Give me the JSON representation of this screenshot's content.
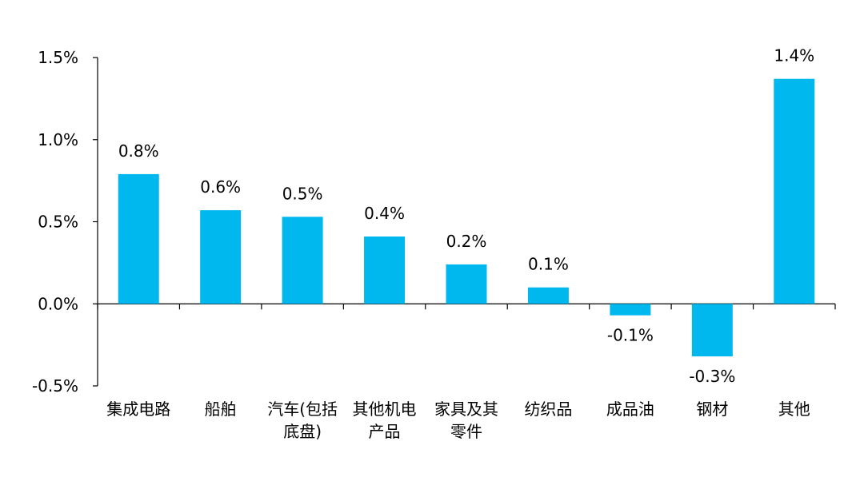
{
  "chart_data": {
    "type": "bar",
    "title": "",
    "xlabel": "",
    "ylabel": "",
    "categories": [
      [
        "集成电路"
      ],
      [
        "船舶"
      ],
      [
        "汽车(包括",
        "底盘)"
      ],
      [
        "其他机电",
        "产品"
      ],
      [
        "家具及其",
        "零件"
      ],
      [
        "纺织品"
      ],
      [
        "成品油"
      ],
      [
        "钢材"
      ],
      [
        "其他"
      ]
    ],
    "values": [
      0.79,
      0.57,
      0.53,
      0.41,
      0.24,
      0.1,
      -0.07,
      -0.32,
      1.37
    ],
    "data_labels": [
      "0.8%",
      "0.6%",
      "0.5%",
      "0.4%",
      "0.2%",
      "0.1%",
      "-0.1%",
      "-0.3%",
      "1.4%"
    ],
    "yticks": [
      1.5,
      1.0,
      0.5,
      0.0,
      -0.5
    ],
    "ytick_labels": [
      "1.5%",
      "1.0%",
      "0.5%",
      "0.0%",
      "-0.5%"
    ],
    "ylim": [
      -0.5,
      1.5
    ],
    "grid": false,
    "bar_color": "#00B8EE",
    "axis_color": "#000000"
  }
}
